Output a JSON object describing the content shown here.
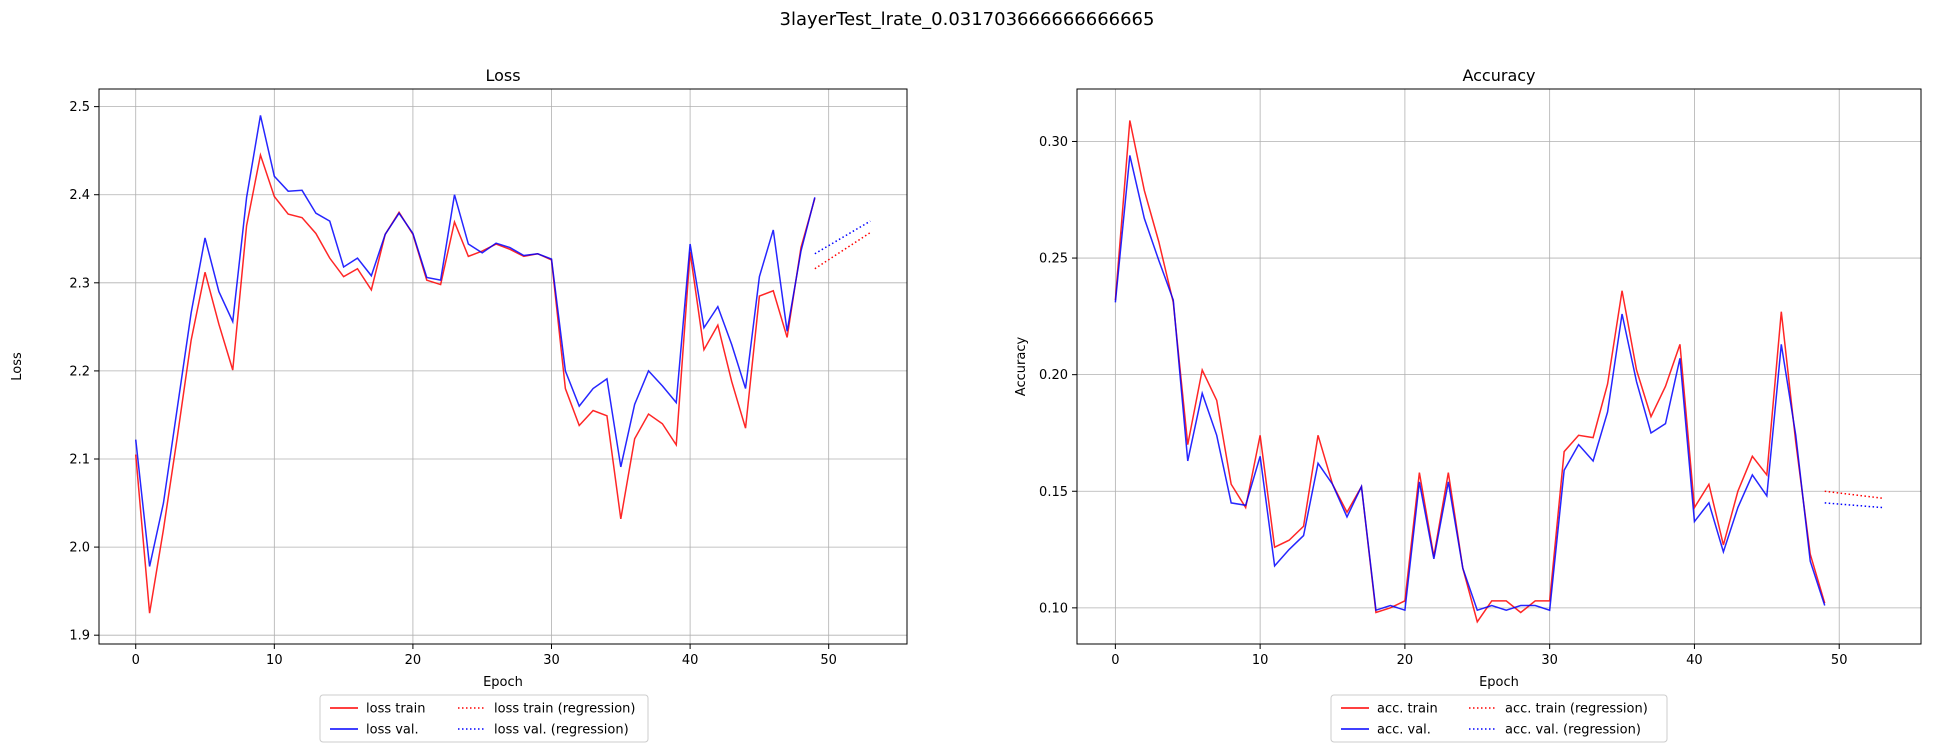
{
  "figure_title": "3layerTest_lrate_0.031703666666666665",
  "chart_data": [
    {
      "type": "line",
      "title": "Loss",
      "xlabel": "Epoch",
      "ylabel": "Loss",
      "xlim": [
        -2.65,
        55.65
      ],
      "ylim": [
        1.89,
        2.52
      ],
      "xticks": [
        0,
        10,
        20,
        30,
        40,
        50
      ],
      "yticks": [
        1.9,
        2.0,
        2.1,
        2.2,
        2.3,
        2.4,
        2.5
      ],
      "grid": true,
      "legend_position": "below",
      "x": [
        0,
        1,
        2,
        3,
        4,
        5,
        6,
        7,
        8,
        9,
        10,
        11,
        12,
        13,
        14,
        15,
        16,
        17,
        18,
        19,
        20,
        21,
        22,
        23,
        24,
        25,
        26,
        27,
        28,
        29,
        30,
        31,
        32,
        33,
        34,
        35,
        36,
        37,
        38,
        39,
        40,
        41,
        42,
        43,
        44,
        45,
        46,
        47,
        48,
        49
      ],
      "series": [
        {
          "name": "loss train",
          "color": "#ff0000",
          "style": "solid",
          "values": [
            2.105,
            1.925,
            2.02,
            2.125,
            2.235,
            2.312,
            2.253,
            2.201,
            2.365,
            2.445,
            2.398,
            2.378,
            2.374,
            2.356,
            2.328,
            2.307,
            2.316,
            2.292,
            2.355,
            2.38,
            2.355,
            2.303,
            2.298,
            2.369,
            2.33,
            2.336,
            2.344,
            2.338,
            2.33,
            2.333,
            2.326,
            2.18,
            2.138,
            2.155,
            2.149,
            2.032,
            2.123,
            2.151,
            2.14,
            2.116,
            2.335,
            2.224,
            2.252,
            2.188,
            2.135,
            2.285,
            2.291,
            2.238,
            2.34,
            2.396
          ]
        },
        {
          "name": "loss val.",
          "color": "#0000ff",
          "style": "solid",
          "values": [
            2.122,
            1.978,
            2.05,
            2.158,
            2.266,
            2.351,
            2.29,
            2.256,
            2.397,
            2.49,
            2.421,
            2.404,
            2.405,
            2.379,
            2.37,
            2.318,
            2.328,
            2.308,
            2.355,
            2.379,
            2.356,
            2.306,
            2.303,
            2.4,
            2.344,
            2.334,
            2.345,
            2.34,
            2.331,
            2.333,
            2.327,
            2.2,
            2.16,
            2.18,
            2.191,
            2.091,
            2.162,
            2.2,
            2.183,
            2.164,
            2.344,
            2.249,
            2.273,
            2.23,
            2.18,
            2.307,
            2.36,
            2.245,
            2.336,
            2.397
          ]
        },
        {
          "name": "loss train (regression)",
          "color": "#ff0000",
          "style": "dotted",
          "x": [
            49,
            53
          ],
          "values": [
            2.316,
            2.357
          ]
        },
        {
          "name": "loss val. (regression)",
          "color": "#0000ff",
          "style": "dotted",
          "x": [
            49,
            53
          ],
          "values": [
            2.333,
            2.37
          ]
        }
      ]
    },
    {
      "type": "line",
      "title": "Accuracy",
      "xlabel": "Epoch",
      "ylabel": "Accuracy",
      "xlim": [
        -2.65,
        55.65
      ],
      "ylim": [
        0.0845,
        0.3225
      ],
      "xticks": [
        0,
        10,
        20,
        30,
        40,
        50
      ],
      "yticks": [
        0.1,
        0.15,
        0.2,
        0.25,
        0.3
      ],
      "ytick_labels": [
        "0.10",
        "0.15",
        "0.20",
        "0.25",
        "0.30"
      ],
      "grid": true,
      "legend_position": "below",
      "x": [
        0,
        1,
        2,
        3,
        4,
        5,
        6,
        7,
        8,
        9,
        10,
        11,
        12,
        13,
        14,
        15,
        16,
        17,
        18,
        19,
        20,
        21,
        22,
        23,
        24,
        25,
        26,
        27,
        28,
        29,
        30,
        31,
        32,
        33,
        34,
        35,
        36,
        37,
        38,
        39,
        40,
        41,
        42,
        43,
        44,
        45,
        46,
        47,
        48,
        49
      ],
      "series": [
        {
          "name": "acc. train",
          "color": "#ff0000",
          "style": "solid",
          "values": [
            0.232,
            0.309,
            0.279,
            0.257,
            0.231,
            0.17,
            0.202,
            0.189,
            0.153,
            0.143,
            0.174,
            0.126,
            0.129,
            0.135,
            0.174,
            0.153,
            0.141,
            0.152,
            0.098,
            0.1,
            0.103,
            0.158,
            0.122,
            0.158,
            0.117,
            0.094,
            0.103,
            0.103,
            0.098,
            0.103,
            0.103,
            0.167,
            0.174,
            0.173,
            0.196,
            0.236,
            0.202,
            0.182,
            0.195,
            0.213,
            0.143,
            0.153,
            0.127,
            0.15,
            0.165,
            0.157,
            0.227,
            0.171,
            0.123,
            0.102
          ]
        },
        {
          "name": "acc. val.",
          "color": "#0000ff",
          "style": "solid",
          "values": [
            0.231,
            0.294,
            0.267,
            0.249,
            0.232,
            0.163,
            0.192,
            0.174,
            0.145,
            0.144,
            0.165,
            0.118,
            0.125,
            0.131,
            0.162,
            0.153,
            0.139,
            0.152,
            0.099,
            0.101,
            0.099,
            0.154,
            0.121,
            0.154,
            0.117,
            0.099,
            0.101,
            0.099,
            0.101,
            0.101,
            0.099,
            0.159,
            0.17,
            0.163,
            0.184,
            0.226,
            0.197,
            0.175,
            0.179,
            0.207,
            0.137,
            0.145,
            0.124,
            0.143,
            0.157,
            0.148,
            0.213,
            0.174,
            0.12,
            0.101
          ]
        },
        {
          "name": "acc. train (regression)",
          "color": "#ff0000",
          "style": "dotted",
          "x": [
            49,
            53
          ],
          "values": [
            0.15,
            0.147
          ]
        },
        {
          "name": "acc. val. (regression)",
          "color": "#0000ff",
          "style": "dotted",
          "x": [
            49,
            53
          ],
          "values": [
            0.145,
            0.143
          ]
        }
      ]
    }
  ]
}
